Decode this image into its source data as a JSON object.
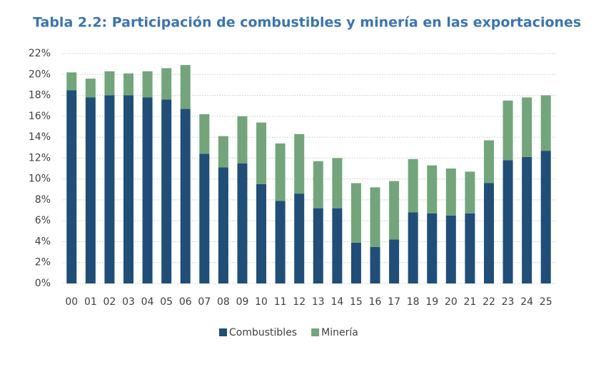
{
  "chart_data": {
    "type": "stacked_bar",
    "title": "Tabla 2.2: Participación de combustibles y minería en las exportaciones",
    "categories": [
      "00",
      "01",
      "02",
      "03",
      "04",
      "05",
      "06",
      "07",
      "08",
      "09",
      "10",
      "11",
      "12",
      "13",
      "14",
      "15",
      "16",
      "17",
      "18",
      "19",
      "20",
      "21",
      "22",
      "23",
      "24",
      "25"
    ],
    "series": [
      {
        "name": "Combustibles",
        "color": "#1f4e79",
        "values": [
          18.5,
          17.8,
          18.0,
          18.0,
          17.8,
          17.6,
          16.7,
          12.4,
          11.1,
          11.5,
          9.5,
          7.9,
          8.6,
          7.2,
          7.2,
          3.9,
          3.5,
          4.2,
          6.8,
          6.7,
          6.5,
          6.7,
          9.6,
          11.8,
          12.1,
          12.7
        ]
      },
      {
        "name": "Minería",
        "color": "#73a57b",
        "values": [
          1.7,
          1.8,
          2.3,
          2.1,
          2.5,
          3.0,
          4.2,
          3.8,
          3.0,
          4.5,
          5.9,
          5.5,
          5.7,
          4.5,
          4.8,
          5.7,
          5.7,
          5.6,
          5.1,
          4.6,
          4.5,
          4.0,
          4.1,
          5.7,
          5.7,
          5.3
        ]
      }
    ],
    "ylim": [
      0,
      22
    ],
    "yticks": [
      {
        "value": 0,
        "label": "0%"
      },
      {
        "value": 2,
        "label": "2%"
      },
      {
        "value": 4,
        "label": "4%"
      },
      {
        "value": 6,
        "label": "6%"
      },
      {
        "value": 8,
        "label": "8%"
      },
      {
        "value": 10,
        "label": "10%"
      },
      {
        "value": 12,
        "label": "12%"
      },
      {
        "value": 14,
        "label": "14%"
      },
      {
        "value": 16,
        "label": "16%"
      },
      {
        "value": 18,
        "label": "18%"
      },
      {
        "value": 20,
        "label": "20%"
      },
      {
        "value": 22,
        "label": "22%"
      }
    ],
    "grid": true,
    "legend": "bottom"
  }
}
